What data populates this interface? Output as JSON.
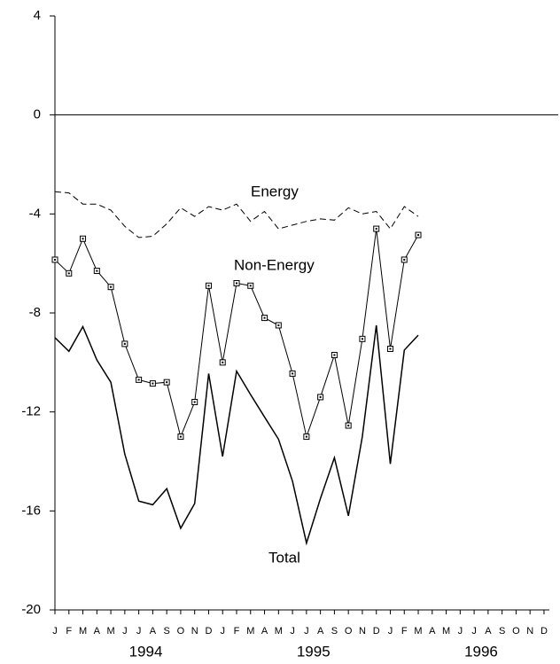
{
  "chart_data": {
    "type": "line",
    "categories": [
      "J",
      "F",
      "M",
      "A",
      "M",
      "J",
      "J",
      "A",
      "S",
      "O",
      "N",
      "D",
      "J",
      "F",
      "M",
      "A",
      "M",
      "J",
      "J",
      "A",
      "S",
      "O",
      "N",
      "D",
      "J",
      "F",
      "M",
      "A",
      "M",
      "J",
      "J",
      "A",
      "S",
      "O",
      "N",
      "D"
    ],
    "years": [
      "1994",
      "1995",
      "1996"
    ],
    "ylim": [
      -20,
      4
    ],
    "yticks": [
      -20,
      -16,
      -12,
      -8,
      -4,
      0,
      4
    ],
    "series": [
      {
        "name": "Energy",
        "color": "#000000",
        "dashed": true,
        "marker": false,
        "values": [
          -3.1,
          -3.15,
          -3.6,
          -3.6,
          -3.85,
          -4.5,
          -4.95,
          -4.9,
          -4.4,
          -3.75,
          -4.1,
          -3.7,
          -3.85,
          -3.6,
          -4.3,
          -3.9,
          -4.6,
          -4.45,
          -4.3,
          -4.2,
          -4.25,
          -3.75,
          -4.0,
          -3.9,
          -4.6,
          -3.7,
          -4.1,
          null,
          null,
          null,
          null,
          null,
          null,
          null,
          null,
          null
        ]
      },
      {
        "name": "Non-Energy",
        "color": "#000000",
        "dashed": false,
        "marker": true,
        "values": [
          -5.85,
          -6.4,
          -5.0,
          -6.3,
          -6.95,
          -9.25,
          -10.7,
          -10.85,
          -10.8,
          -13.0,
          -11.6,
          -6.9,
          -10.0,
          -6.8,
          -6.9,
          -8.2,
          -8.5,
          -10.45,
          -13.0,
          -11.4,
          -9.7,
          -12.55,
          -9.05,
          -4.6,
          -9.45,
          -5.85,
          -4.85,
          null,
          null,
          null,
          null,
          null,
          null,
          null,
          null,
          null
        ]
      },
      {
        "name": "Total",
        "color": "#000000",
        "dashed": false,
        "marker": false,
        "values": [
          -9.0,
          -9.55,
          -8.55,
          -9.9,
          -10.8,
          -13.7,
          -15.6,
          -15.75,
          -15.1,
          -16.7,
          -15.7,
          -10.45,
          -13.8,
          -10.35,
          -11.3,
          -12.2,
          -13.1,
          -14.8,
          -17.3,
          -15.5,
          -13.85,
          -16.2,
          -13.0,
          -8.5,
          -14.1,
          -9.5,
          -8.9,
          null,
          null,
          null,
          null,
          null,
          null,
          null,
          null,
          null
        ]
      }
    ]
  }
}
